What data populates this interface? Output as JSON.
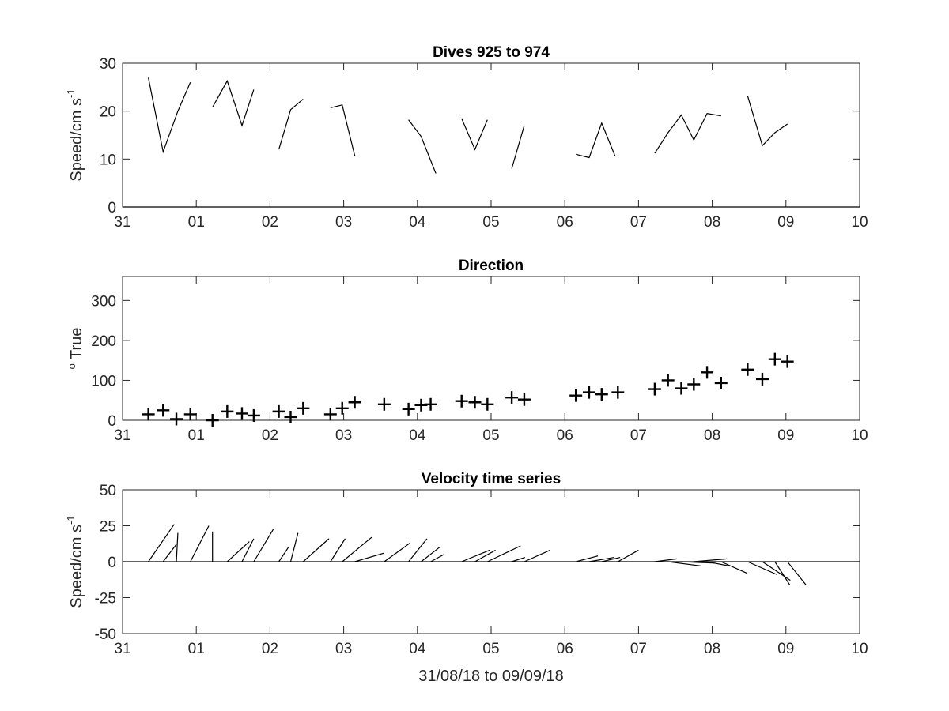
{
  "chart_data": [
    {
      "type": "line",
      "title": "Dives 925 to 974",
      "ylabel": {
        "text": "Speed/cm s",
        "sup": "-1"
      },
      "xlabel": "",
      "xlim": [
        0,
        10
      ],
      "ylim": [
        0,
        30
      ],
      "x_ticks": [
        {
          "v": 0,
          "label": "31"
        },
        {
          "v": 1,
          "label": "01"
        },
        {
          "v": 2,
          "label": "02"
        },
        {
          "v": 3,
          "label": "03"
        },
        {
          "v": 4,
          "label": "04"
        },
        {
          "v": 5,
          "label": "05"
        },
        {
          "v": 6,
          "label": "06"
        },
        {
          "v": 7,
          "label": "07"
        },
        {
          "v": 8,
          "label": "08"
        },
        {
          "v": 9,
          "label": "09"
        },
        {
          "v": 10,
          "label": "10"
        }
      ],
      "y_ticks": [
        {
          "v": 0,
          "label": "0"
        },
        {
          "v": 10,
          "label": "10"
        },
        {
          "v": 20,
          "label": "20"
        },
        {
          "v": 30,
          "label": "30"
        }
      ],
      "series": [
        {
          "points": [
            [
              0.35,
              27.0
            ],
            [
              0.55,
              11.5
            ],
            [
              0.75,
              20.0
            ],
            [
              0.92,
              26.0
            ]
          ]
        },
        {
          "points": [
            [
              1.22,
              20.8
            ],
            [
              1.42,
              26.3
            ],
            [
              1.62,
              17.0
            ],
            [
              1.78,
              24.5
            ]
          ]
        },
        {
          "points": [
            [
              2.12,
              12.0
            ],
            [
              2.28,
              20.3
            ],
            [
              2.45,
              22.5
            ]
          ]
        },
        {
          "points": [
            [
              2.82,
              20.7
            ],
            [
              2.98,
              21.3
            ],
            [
              3.15,
              10.7
            ]
          ]
        },
        {
          "points": [
            [
              3.88,
              18.2
            ],
            [
              4.05,
              14.7
            ],
            [
              4.25,
              7.0
            ]
          ]
        },
        {
          "points": [
            [
              4.6,
              18.5
            ],
            [
              4.78,
              12.0
            ],
            [
              4.95,
              18.2
            ]
          ]
        },
        {
          "points": [
            [
              5.28,
              8.0
            ],
            [
              5.45,
              17.0
            ]
          ]
        },
        {
          "points": [
            [
              6.15,
              11.0
            ],
            [
              6.33,
              10.3
            ],
            [
              6.5,
              17.5
            ],
            [
              6.68,
              10.7
            ]
          ]
        },
        {
          "points": [
            [
              7.22,
              11.2
            ],
            [
              7.4,
              15.5
            ],
            [
              7.58,
              19.2
            ],
            [
              7.75,
              14.0
            ],
            [
              7.93,
              19.5
            ],
            [
              8.12,
              19.0
            ]
          ]
        },
        {
          "points": [
            [
              8.48,
              23.2
            ],
            [
              8.68,
              12.8
            ],
            [
              8.85,
              15.5
            ],
            [
              9.02,
              17.3
            ]
          ]
        }
      ]
    },
    {
      "type": "scatter",
      "title": "Direction",
      "ylabel": {
        "text": "True",
        "sup": "o"
      },
      "xlabel": "",
      "xlim": [
        0,
        10
      ],
      "ylim": [
        0,
        360
      ],
      "x_ticks": [
        {
          "v": 0,
          "label": "31"
        },
        {
          "v": 1,
          "label": "01"
        },
        {
          "v": 2,
          "label": "02"
        },
        {
          "v": 3,
          "label": "03"
        },
        {
          "v": 4,
          "label": "04"
        },
        {
          "v": 5,
          "label": "05"
        },
        {
          "v": 6,
          "label": "06"
        },
        {
          "v": 7,
          "label": "07"
        },
        {
          "v": 8,
          "label": "08"
        },
        {
          "v": 9,
          "label": "09"
        },
        {
          "v": 10,
          "label": "10"
        }
      ],
      "y_ticks": [
        {
          "v": 0,
          "label": "0"
        },
        {
          "v": 100,
          "label": "100"
        },
        {
          "v": 200,
          "label": "200"
        },
        {
          "v": 300,
          "label": "300"
        }
      ],
      "marker": "+",
      "points": [
        [
          0.35,
          15
        ],
        [
          0.55,
          25
        ],
        [
          0.73,
          3
        ],
        [
          0.92,
          15
        ],
        [
          1.22,
          0
        ],
        [
          1.42,
          22
        ],
        [
          1.62,
          17
        ],
        [
          1.78,
          12
        ],
        [
          2.12,
          22
        ],
        [
          2.28,
          8
        ],
        [
          2.45,
          30
        ],
        [
          2.82,
          15
        ],
        [
          2.98,
          30
        ],
        [
          3.15,
          45
        ],
        [
          3.55,
          40
        ],
        [
          3.88,
          28
        ],
        [
          4.05,
          38
        ],
        [
          4.18,
          40
        ],
        [
          4.6,
          48
        ],
        [
          4.78,
          45
        ],
        [
          4.95,
          40
        ],
        [
          5.28,
          57
        ],
        [
          5.45,
          52
        ],
        [
          6.15,
          62
        ],
        [
          6.33,
          70
        ],
        [
          6.5,
          65
        ],
        [
          6.72,
          70
        ],
        [
          7.22,
          78
        ],
        [
          7.4,
          100
        ],
        [
          7.58,
          80
        ],
        [
          7.75,
          90
        ],
        [
          7.93,
          120
        ],
        [
          8.12,
          93
        ],
        [
          8.48,
          127
        ],
        [
          8.68,
          103
        ],
        [
          8.85,
          153
        ],
        [
          9.02,
          147
        ]
      ]
    },
    {
      "type": "line",
      "title": "Velocity time series",
      "ylabel": {
        "text": "Speed/cm s",
        "sup": "-1"
      },
      "xlabel": "31/08/18 to 09/09/18",
      "xlim": [
        0,
        10
      ],
      "ylim": [
        -50,
        50
      ],
      "x_ticks": [
        {
          "v": 0,
          "label": "31"
        },
        {
          "v": 1,
          "label": "01"
        },
        {
          "v": 2,
          "label": "02"
        },
        {
          "v": 3,
          "label": "03"
        },
        {
          "v": 4,
          "label": "04"
        },
        {
          "v": 5,
          "label": "05"
        },
        {
          "v": 6,
          "label": "06"
        },
        {
          "v": 7,
          "label": "07"
        },
        {
          "v": 8,
          "label": "08"
        },
        {
          "v": 9,
          "label": "09"
        },
        {
          "v": 10,
          "label": "10"
        }
      ],
      "y_ticks": [
        {
          "v": -50,
          "label": "-50"
        },
        {
          "v": -25,
          "label": "-25"
        },
        {
          "v": 0,
          "label": "0"
        },
        {
          "v": 25,
          "label": "25"
        },
        {
          "v": 50,
          "label": "50"
        }
      ],
      "zero_line": true,
      "sticks": [
        [
          0.35,
          0.35,
          26
        ],
        [
          0.55,
          0.18,
          12
        ],
        [
          0.73,
          0.02,
          20
        ],
        [
          0.92,
          0.25,
          25
        ],
        [
          1.22,
          0.0,
          21
        ],
        [
          1.42,
          0.3,
          14
        ],
        [
          1.62,
          0.16,
          16
        ],
        [
          1.78,
          0.27,
          23
        ],
        [
          2.12,
          0.13,
          10
        ],
        [
          2.28,
          0.1,
          20
        ],
        [
          2.45,
          0.35,
          16
        ],
        [
          2.82,
          0.2,
          16
        ],
        [
          2.98,
          0.4,
          17
        ],
        [
          3.15,
          0.4,
          6
        ],
        [
          3.55,
          0.35,
          13
        ],
        [
          3.88,
          0.25,
          16
        ],
        [
          4.05,
          0.25,
          10
        ],
        [
          4.18,
          0.18,
          5
        ],
        [
          4.6,
          0.38,
          8
        ],
        [
          4.78,
          0.28,
          8
        ],
        [
          4.95,
          0.45,
          11
        ],
        [
          5.28,
          0.18,
          3
        ],
        [
          5.45,
          0.35,
          8
        ],
        [
          6.15,
          0.3,
          4
        ],
        [
          6.33,
          0.34,
          3
        ],
        [
          6.5,
          0.25,
          3
        ],
        [
          6.72,
          0.28,
          8
        ],
        [
          7.22,
          0.3,
          2
        ],
        [
          7.4,
          0.45,
          -3
        ],
        [
          7.58,
          0.45,
          -1
        ],
        [
          7.75,
          0.45,
          2
        ],
        [
          7.93,
          0.3,
          -3
        ],
        [
          8.12,
          0.35,
          -8
        ],
        [
          8.48,
          0.4,
          -9
        ],
        [
          8.68,
          0.38,
          -13
        ],
        [
          8.85,
          0.2,
          -16
        ],
        [
          9.02,
          0.25,
          -16
        ]
      ]
    }
  ]
}
